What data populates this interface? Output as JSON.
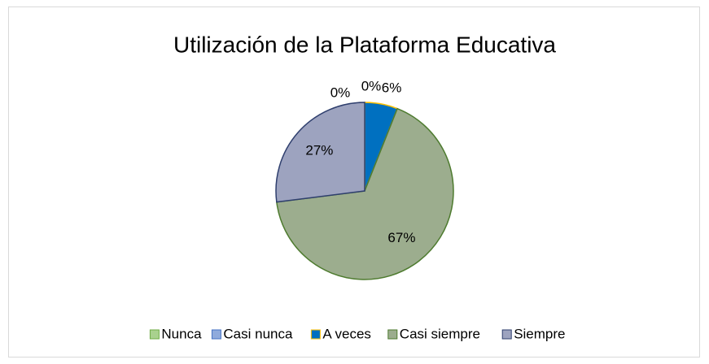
{
  "chart_data": {
    "type": "pie",
    "title": "Utilización de la Plataforma Educativa",
    "categories": [
      "Nunca",
      "Casi nunca",
      "A veces",
      "Casi siempre",
      "Siempre"
    ],
    "values": [
      0,
      0,
      6,
      67,
      27
    ],
    "value_labels": [
      "0%",
      "0%",
      "6%",
      "67%",
      "27%"
    ],
    "colors": [
      "#a9d18e",
      "#8faadc",
      "#0070c0",
      "#9cad8e",
      "#9da3bf"
    ],
    "edge_colors": [
      "#70ad47",
      "#4472c4",
      "#ffc000",
      "#4e7b2f",
      "#2f3f6e"
    ],
    "legend": "bottom"
  }
}
